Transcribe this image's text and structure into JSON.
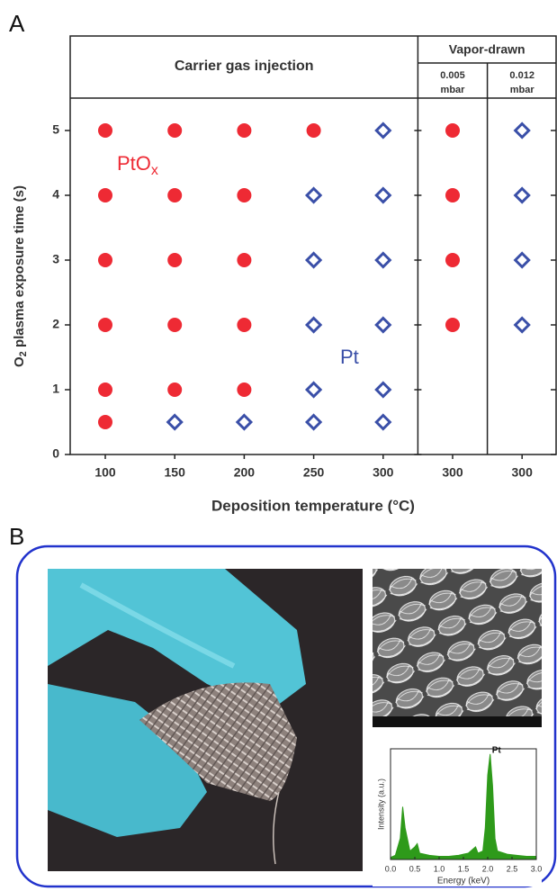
{
  "panel_labels": [
    "A",
    "B"
  ],
  "chart_data": [
    {
      "type": "scatter",
      "xlabel": "Deposition temperature (°C)",
      "ylabel": {
        "text": "O",
        "sub": "2",
        "rest": " plasma exposure time (s)"
      },
      "categories": [
        "100",
        "150",
        "200",
        "250",
        "300",
        "300",
        "300"
      ],
      "groups": [
        {
          "label": "Carrier gas injection"
        },
        {
          "label": "Vapor-drawn",
          "subgroups": [
            [
              "0.005",
              "mbar"
            ],
            [
              "0.012",
              "mbar"
            ]
          ]
        }
      ],
      "ylim": [
        0,
        5.5
      ],
      "yticks": [
        0,
        1,
        2,
        3,
        4,
        5
      ],
      "series": [
        {
          "name": "PtO",
          "name_sub": "x",
          "color": "#ee2a34",
          "marker": "circle",
          "x": [
            0,
            0,
            0,
            0,
            0,
            0,
            1,
            1,
            1,
            1,
            1,
            2,
            2,
            2,
            2,
            2,
            3,
            5,
            5,
            5,
            5
          ],
          "values": [
            5,
            4,
            3,
            2,
            1,
            0.5,
            5,
            4,
            3,
            2,
            1,
            5,
            4,
            3,
            2,
            1,
            5,
            5,
            4,
            3,
            2
          ]
        },
        {
          "name": "Pt",
          "color": "#3a4fa8",
          "marker": "diamond",
          "x": [
            1,
            2,
            3,
            3,
            3,
            3,
            3,
            4,
            4,
            4,
            4,
            4,
            4,
            6,
            6,
            6,
            6
          ],
          "values": [
            0.5,
            0.5,
            4,
            3,
            2,
            1,
            0.5,
            5,
            4,
            3,
            2,
            1,
            0.5,
            5,
            4,
            3,
            2
          ]
        }
      ]
    },
    {
      "type": "area",
      "xlabel": "Energy (keV)",
      "ylabel": "Intensity (a.u.)",
      "annotation": "Pt",
      "color": "#2e9a1a",
      "x": [
        0,
        0.1,
        0.2,
        0.25,
        0.3,
        0.4,
        0.5,
        0.55,
        0.6,
        0.8,
        1.0,
        1.2,
        1.4,
        1.5,
        1.6,
        1.7,
        1.75,
        1.8,
        1.9,
        1.95,
        2.0,
        2.05,
        2.1,
        2.15,
        2.2,
        2.4,
        2.6,
        2.8,
        3.0
      ],
      "values": [
        2,
        4,
        20,
        50,
        30,
        8,
        12,
        15,
        6,
        4,
        3,
        3,
        4,
        5,
        6,
        10,
        12,
        6,
        8,
        30,
        80,
        100,
        70,
        20,
        8,
        5,
        4,
        3,
        3
      ],
      "xlim": [
        0,
        3
      ],
      "ylim": [
        0,
        105
      ],
      "xticks": [
        {
          "value": 0,
          "label": "0.0"
        },
        {
          "value": 0.5,
          "label": "0.5"
        },
        {
          "value": 1,
          "label": "1.0"
        },
        {
          "value": 1.5,
          "label": "1.5"
        },
        {
          "value": 2,
          "label": "2.0"
        },
        {
          "value": 2.5,
          "label": "2.5"
        },
        {
          "value": 3,
          "label": "3.0"
        }
      ]
    }
  ]
}
